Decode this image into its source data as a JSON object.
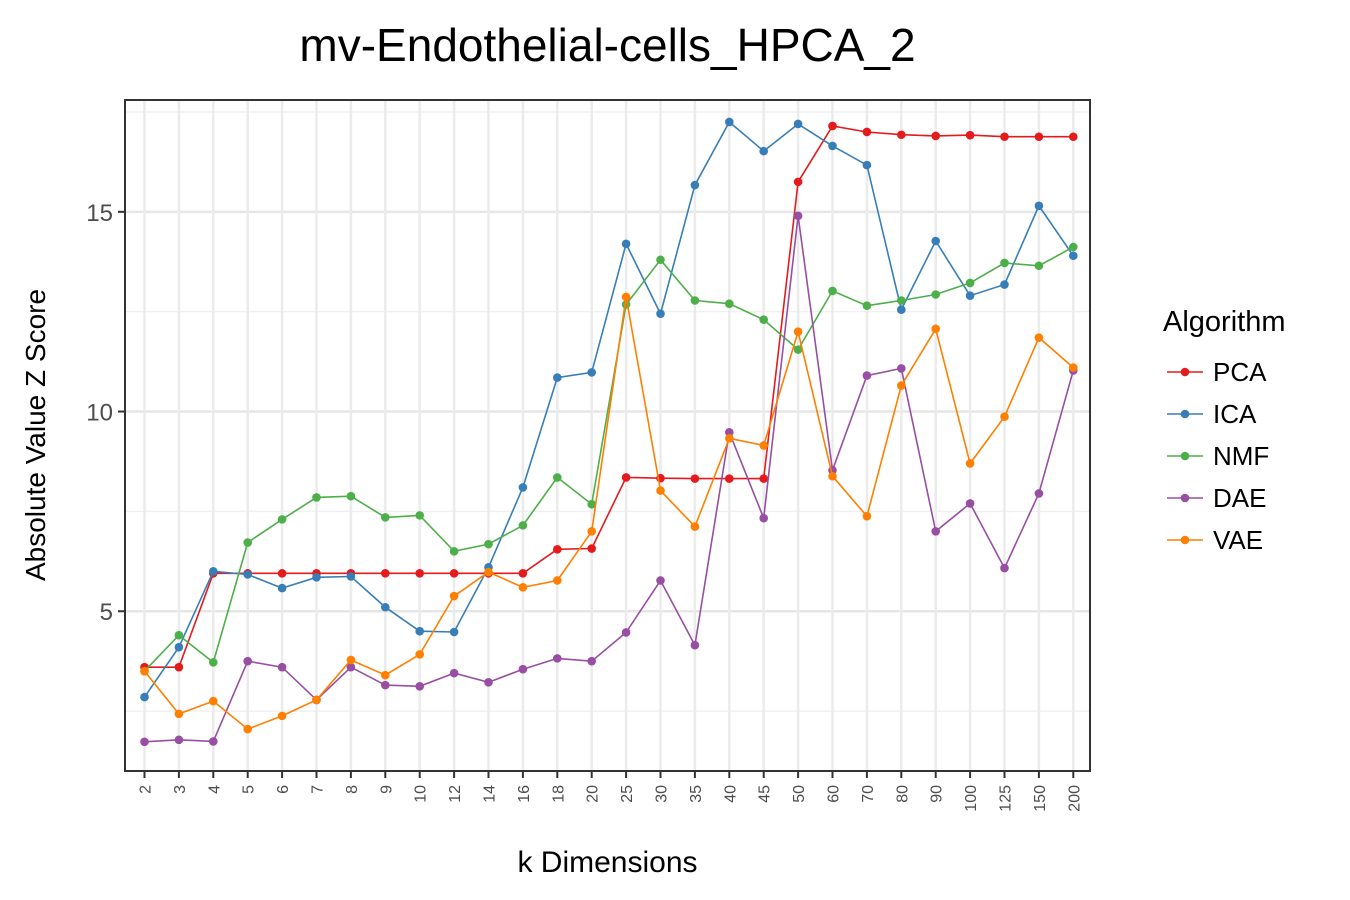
{
  "chart_data": {
    "type": "line",
    "title": "mv-Endothelial-cells_HPCA_2",
    "xlabel": "k Dimensions",
    "ylabel": "Absolute Value Z Score",
    "categories": [
      "2",
      "3",
      "4",
      "5",
      "6",
      "7",
      "8",
      "9",
      "10",
      "12",
      "14",
      "16",
      "18",
      "20",
      "25",
      "30",
      "35",
      "40",
      "45",
      "50",
      "60",
      "70",
      "80",
      "90",
      "100",
      "125",
      "150",
      "200"
    ],
    "ylim": [
      1.0,
      17.8
    ],
    "yticks": [
      5,
      10,
      15
    ],
    "grid": true,
    "legend": {
      "title": "Algorithm",
      "position": "right"
    },
    "series": [
      {
        "name": "PCA",
        "color": "#E41A1C",
        "values": [
          3.6,
          3.6,
          5.95,
          5.95,
          5.95,
          5.95,
          5.95,
          5.95,
          5.95,
          5.95,
          5.95,
          5.95,
          6.55,
          6.57,
          8.35,
          8.33,
          8.32,
          8.32,
          8.32,
          15.75,
          17.15,
          17.0,
          16.93,
          16.9,
          16.92,
          16.88,
          16.88,
          16.88
        ]
      },
      {
        "name": "ICA",
        "color": "#377EB8",
        "values": [
          2.85,
          4.1,
          6.0,
          5.92,
          5.58,
          5.85,
          5.87,
          5.1,
          4.5,
          4.48,
          6.1,
          8.1,
          10.85,
          10.98,
          14.2,
          12.45,
          15.67,
          17.25,
          16.52,
          17.2,
          16.65,
          16.17,
          12.55,
          14.27,
          12.9,
          13.18,
          15.15,
          13.9
        ]
      },
      {
        "name": "NMF",
        "color": "#4DAF4A",
        "values": [
          3.5,
          4.4,
          3.72,
          6.72,
          7.3,
          7.85,
          7.88,
          7.35,
          7.4,
          6.5,
          6.68,
          7.15,
          8.35,
          7.68,
          12.68,
          13.8,
          12.78,
          12.7,
          12.3,
          11.55,
          13.02,
          12.65,
          12.78,
          12.93,
          13.22,
          13.72,
          13.65,
          14.12
        ]
      },
      {
        "name": "DAE",
        "color": "#984EA3",
        "values": [
          1.73,
          1.78,
          1.74,
          3.75,
          3.6,
          2.78,
          3.6,
          3.15,
          3.12,
          3.45,
          3.22,
          3.55,
          3.82,
          3.75,
          4.47,
          5.77,
          4.15,
          9.48,
          7.33,
          14.9,
          8.53,
          10.9,
          11.08,
          7.0,
          7.7,
          6.08,
          7.95,
          11.03
        ]
      },
      {
        "name": "VAE",
        "color": "#FF7F00",
        "values": [
          3.5,
          2.43,
          2.75,
          2.05,
          2.38,
          2.78,
          3.78,
          3.4,
          3.92,
          5.38,
          5.98,
          5.6,
          5.77,
          7.0,
          12.87,
          8.02,
          7.12,
          9.33,
          9.15,
          12.0,
          8.38,
          7.38,
          10.65,
          12.07,
          8.7,
          9.87,
          11.85,
          11.1
        ]
      }
    ]
  }
}
